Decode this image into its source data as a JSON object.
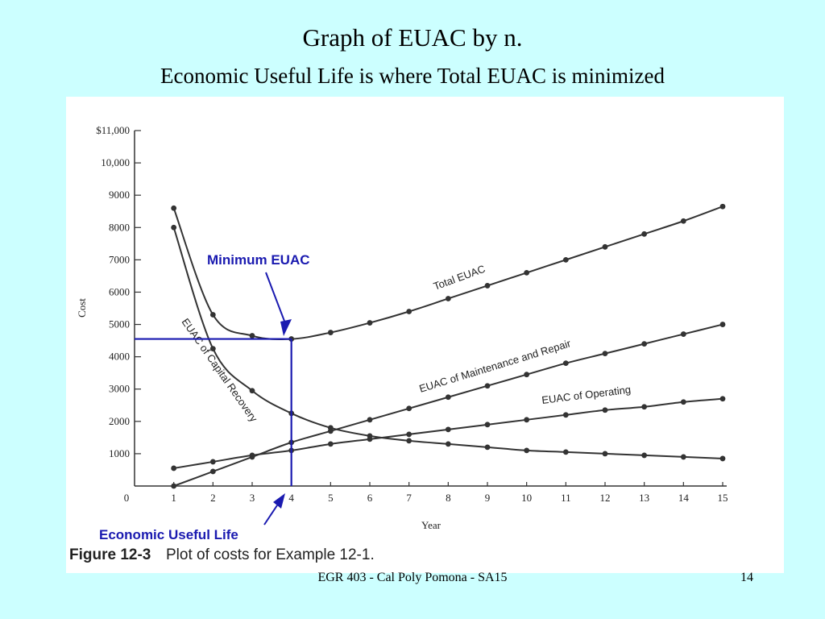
{
  "slide": {
    "title": "Graph of EUAC by n.",
    "subtitle": "Economic Useful Life is where Total EUAC is minimized",
    "footer": "EGR 403 - Cal Poly Pomona - SA15",
    "page_number": "14"
  },
  "chart_data": {
    "type": "line",
    "xlabel": "Year",
    "ylabel": "Cost",
    "xlim": [
      0,
      15
    ],
    "ylim": [
      0,
      11000
    ],
    "x_ticks": [
      "0",
      "1",
      "2",
      "3",
      "4",
      "5",
      "6",
      "7",
      "8",
      "9",
      "10",
      "11",
      "12",
      "13",
      "14",
      "15"
    ],
    "y_ticks": [
      {
        "value": 1000,
        "label": "1000"
      },
      {
        "value": 2000,
        "label": "2000"
      },
      {
        "value": 3000,
        "label": "3000"
      },
      {
        "value": 4000,
        "label": "4000"
      },
      {
        "value": 5000,
        "label": "5000"
      },
      {
        "value": 6000,
        "label": "6000"
      },
      {
        "value": 7000,
        "label": "7000"
      },
      {
        "value": 8000,
        "label": "8000"
      },
      {
        "value": 9000,
        "label": "9000"
      },
      {
        "value": 10000,
        "label": "10,000"
      },
      {
        "value": 11000,
        "label": "$11,000"
      }
    ],
    "grid": false,
    "series": [
      {
        "name": "Total EUAC",
        "x": [
          1,
          2,
          3,
          4,
          5,
          6,
          7,
          8,
          9,
          10,
          11,
          12,
          13,
          14,
          15
        ],
        "y": [
          8600,
          5300,
          4650,
          4550,
          4750,
          5050,
          5400,
          5800,
          6200,
          6600,
          7000,
          7400,
          7800,
          8200,
          8650
        ]
      },
      {
        "name": "EUAC of Capital Recovery",
        "x": [
          1,
          2,
          3,
          4,
          5,
          6,
          7,
          8,
          9,
          10,
          11,
          12,
          13,
          14,
          15
        ],
        "y": [
          8000,
          4250,
          2950,
          2250,
          1800,
          1550,
          1400,
          1300,
          1200,
          1100,
          1050,
          1000,
          950,
          900,
          850
        ]
      },
      {
        "name": "EUAC of Maintenance and Repair",
        "x": [
          1,
          2,
          3,
          4,
          5,
          6,
          7,
          8,
          9,
          10,
          11,
          12,
          13,
          14,
          15
        ],
        "y": [
          0,
          450,
          900,
          1350,
          1700,
          2050,
          2400,
          2750,
          3100,
          3450,
          3800,
          4100,
          4400,
          4700,
          5000
        ]
      },
      {
        "name": "EUAC of Operating",
        "x": [
          1,
          2,
          3,
          4,
          5,
          6,
          7,
          8,
          9,
          10,
          11,
          12,
          13,
          14,
          15
        ],
        "y": [
          550,
          750,
          950,
          1100,
          1300,
          1450,
          1600,
          1750,
          1900,
          2050,
          2200,
          2350,
          2450,
          2600,
          2700
        ]
      }
    ],
    "annotations": {
      "minimum_euac": "Minimum EUAC",
      "economic_useful_life": "Economic Useful Life",
      "minimum_point": {
        "x": 4,
        "y": 4550
      }
    },
    "caption_bold": "Figure 12-3",
    "caption_text": "Plot of costs for Example 12-1."
  },
  "colors": {
    "background": "#ccffff",
    "annotation": "#1a1ab0",
    "curve": "#333333"
  }
}
